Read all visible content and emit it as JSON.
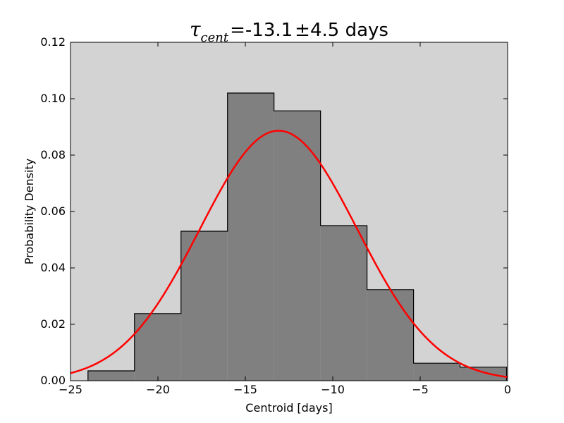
{
  "chart_data": {
    "type": "bar",
    "title": {
      "symbol": "τ",
      "subscript": "cent",
      "equals": "=",
      "value": "-13.1",
      "pm": "±",
      "error": "4.5 days"
    },
    "xlabel": "Centroid [days]",
    "ylabel": "Probability Density",
    "xlim": [
      -25,
      0
    ],
    "ylim": [
      0,
      0.12
    ],
    "x_ticks": [
      -25,
      -20,
      -15,
      -10,
      -5,
      0
    ],
    "x_tick_labels": [
      "−25",
      "−20",
      "−15",
      "−10",
      "−5",
      "0"
    ],
    "y_ticks": [
      0,
      0.02,
      0.04,
      0.06,
      0.08,
      0.1,
      0.12
    ],
    "y_tick_labels": [
      "0.00",
      "0.02",
      "0.04",
      "0.06",
      "0.08",
      "0.10",
      "0.12"
    ],
    "grid": false,
    "histogram": {
      "bin_edges": [
        -24.0,
        -21.34,
        -18.68,
        -16.02,
        -13.36,
        -10.7,
        -8.04,
        -5.38,
        -2.72,
        -0.06
      ],
      "values": [
        0.0035,
        0.0238,
        0.053,
        0.102,
        0.0957,
        0.055,
        0.0323,
        0.0062,
        0.0048
      ],
      "fill_color": "#808080",
      "edge_color": "#000000"
    },
    "fit_curve": {
      "model": "gaussian",
      "mean": -13.1,
      "sigma": 4.5,
      "color": "#ff0000"
    },
    "colors": {
      "plot_background": "#d3d3d3",
      "figure_background": "#ffffff"
    }
  }
}
